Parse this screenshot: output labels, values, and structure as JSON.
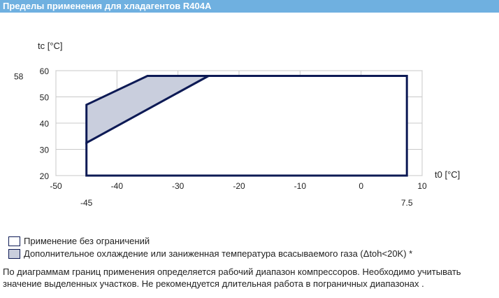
{
  "header": {
    "title": "Пределы применения для хладагентов R404A"
  },
  "chart_data": {
    "type": "area",
    "title": "Пределы применения для хладагентов R404A",
    "xlabel": "t0 [°C]",
    "ylabel": "tc [°C]",
    "xlim": [
      -50,
      10
    ],
    "ylim": [
      20,
      60
    ],
    "xticks": [
      -50,
      -40,
      -30,
      -20,
      -10,
      0,
      10
    ],
    "yticks": [
      20,
      30,
      40,
      50,
      60
    ],
    "grid": true,
    "x_markers": [
      -45,
      7.5
    ],
    "y_markers": [
      58
    ],
    "series": [
      {
        "name": "Применение без ограничений",
        "polygon": [
          [
            -45,
            20
          ],
          [
            -45,
            32.5
          ],
          [
            -25,
            58
          ],
          [
            7.5,
            58
          ],
          [
            7.5,
            20
          ]
        ],
        "fill": "#ffffff",
        "stroke": "#0d1a55"
      },
      {
        "name": "Дополнительное охлаждение или заниженная температура всасываемого газа (Δtoh<20K) *",
        "polygon": [
          [
            -45,
            32.5
          ],
          [
            -45,
            47
          ],
          [
            -35,
            58
          ],
          [
            -25,
            58
          ]
        ],
        "fill": "#c9cedd",
        "stroke": "#0d1a55"
      }
    ]
  },
  "legend": {
    "items": [
      {
        "label": "Применение без ограничений",
        "color": "#ffffff"
      },
      {
        "label": "Дополнительное охлаждение или заниженная температура всасываемого газа (Δtoh<20K) *",
        "color": "#c9cedd"
      }
    ]
  },
  "footnote": "По диаграммам границ применения определяется рабочий диапазон компрессоров. Необходимо учитывать значение выделенных участков. Не рекомендуется длительная работа в пограничных диапазонах ."
}
